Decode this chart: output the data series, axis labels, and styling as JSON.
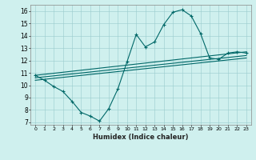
{
  "xlabel": "Humidex (Indice chaleur)",
  "background_color": "#cff0ee",
  "line_color": "#006868",
  "xlim": [
    -0.5,
    23.5
  ],
  "ylim": [
    6.8,
    16.5
  ],
  "line1_x": [
    0,
    1,
    2,
    3,
    4,
    5,
    6,
    7,
    8,
    9,
    10,
    11,
    12,
    13,
    14,
    15,
    16,
    17,
    18,
    19,
    20,
    21,
    22,
    23
  ],
  "line1_y": [
    10.8,
    10.4,
    9.9,
    9.5,
    8.7,
    7.8,
    7.5,
    7.1,
    8.1,
    9.7,
    11.9,
    14.1,
    13.1,
    13.5,
    14.9,
    15.9,
    16.1,
    15.6,
    14.2,
    12.2,
    12.1,
    12.6,
    12.7,
    12.6
  ],
  "line2_x": [
    0,
    23
  ],
  "line2_y": [
    10.8,
    12.7
  ],
  "line3_x": [
    0,
    23
  ],
  "line3_y": [
    10.6,
    12.4
  ],
  "line4_x": [
    0,
    23
  ],
  "line4_y": [
    10.4,
    12.2
  ],
  "yticks": [
    7,
    8,
    9,
    10,
    11,
    12,
    13,
    14,
    15,
    16
  ],
  "xticks": [
    0,
    1,
    2,
    3,
    4,
    5,
    6,
    7,
    8,
    9,
    10,
    11,
    12,
    13,
    14,
    15,
    16,
    17,
    18,
    19,
    20,
    21,
    22,
    23
  ]
}
